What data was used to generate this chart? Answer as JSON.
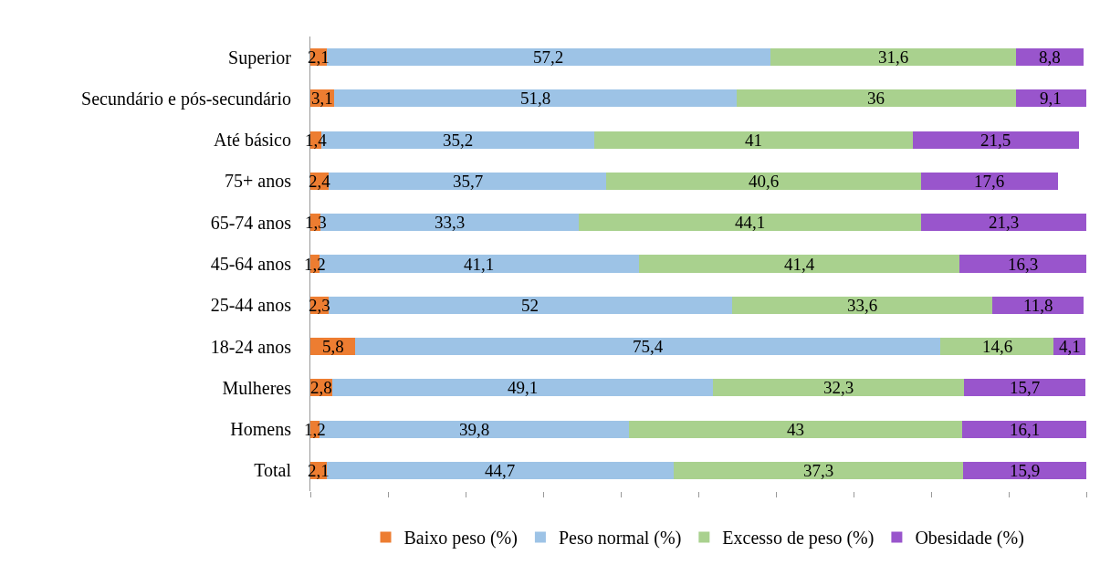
{
  "chart_data": {
    "type": "bar",
    "orientation": "horizontal",
    "stacked": true,
    "legend": "bottom",
    "tick_labels": "y",
    "categories": [
      "Superior",
      "Secundário e pós-secundário",
      "Até básico",
      "75+ anos",
      "65-74 anos",
      "45-64 anos",
      "25-44 anos",
      "18-24 anos",
      "Mulheres",
      "Homens",
      "Total"
    ],
    "xlim": [
      0,
      100
    ],
    "xticks": [
      {
        "value": 0,
        "label": null
      },
      {
        "value": 10,
        "label": null
      },
      {
        "value": 20,
        "label": null
      },
      {
        "value": 30,
        "label": null
      },
      {
        "value": 40,
        "label": null
      },
      {
        "value": 50,
        "label": null
      },
      {
        "value": 60,
        "label": null
      },
      {
        "value": 70,
        "label": null
      },
      {
        "value": 80,
        "label": null
      },
      {
        "value": 90,
        "label": null
      },
      {
        "value": 100,
        "label": null
      }
    ],
    "series": [
      {
        "name": "Baixo peso (%)",
        "color": "#ed7d31",
        "values": [
          2.1,
          3.1,
          1.4,
          2.4,
          1.3,
          1.2,
          2.3,
          5.8,
          2.8,
          1.2,
          2.1
        ],
        "value_labels": [
          "2,1",
          "3,1",
          "1,4",
          "2,4",
          "1,3",
          "1,2",
          "2,3",
          "5,8",
          "2,8",
          "1,2",
          "2,1"
        ]
      },
      {
        "name": "Peso normal (%)",
        "color": "#9dc3e6",
        "values": [
          57.2,
          51.8,
          35.2,
          35.7,
          33.3,
          41.1,
          52,
          75.4,
          49.1,
          39.8,
          44.7
        ],
        "value_labels": [
          "57,2",
          "51,8",
          "35,2",
          "35,7",
          "33,3",
          "41,1",
          "52",
          "75,4",
          "49,1",
          "39,8",
          "44,7"
        ]
      },
      {
        "name": "Excesso de peso (%)",
        "color": "#a9d18e",
        "values": [
          31.6,
          36,
          41,
          40.6,
          44.1,
          41.4,
          33.6,
          14.6,
          32.3,
          43,
          37.3
        ],
        "value_labels": [
          "31,6",
          "36",
          "41",
          "40,6",
          "44,1",
          "41,4",
          "33,6",
          "14,6",
          "32,3",
          "43",
          "37,3"
        ]
      },
      {
        "name": "Obesidade (%)",
        "color": "#9955cc",
        "values": [
          8.8,
          9.1,
          21.5,
          17.6,
          21.3,
          16.3,
          11.8,
          4.1,
          15.7,
          16.1,
          15.9
        ],
        "value_labels": [
          "8,8",
          "9,1",
          "21,5",
          "17,6",
          "21,3",
          "16,3",
          "11,8",
          "4,1",
          "15,7",
          "16,1",
          "15,9"
        ]
      }
    ]
  }
}
